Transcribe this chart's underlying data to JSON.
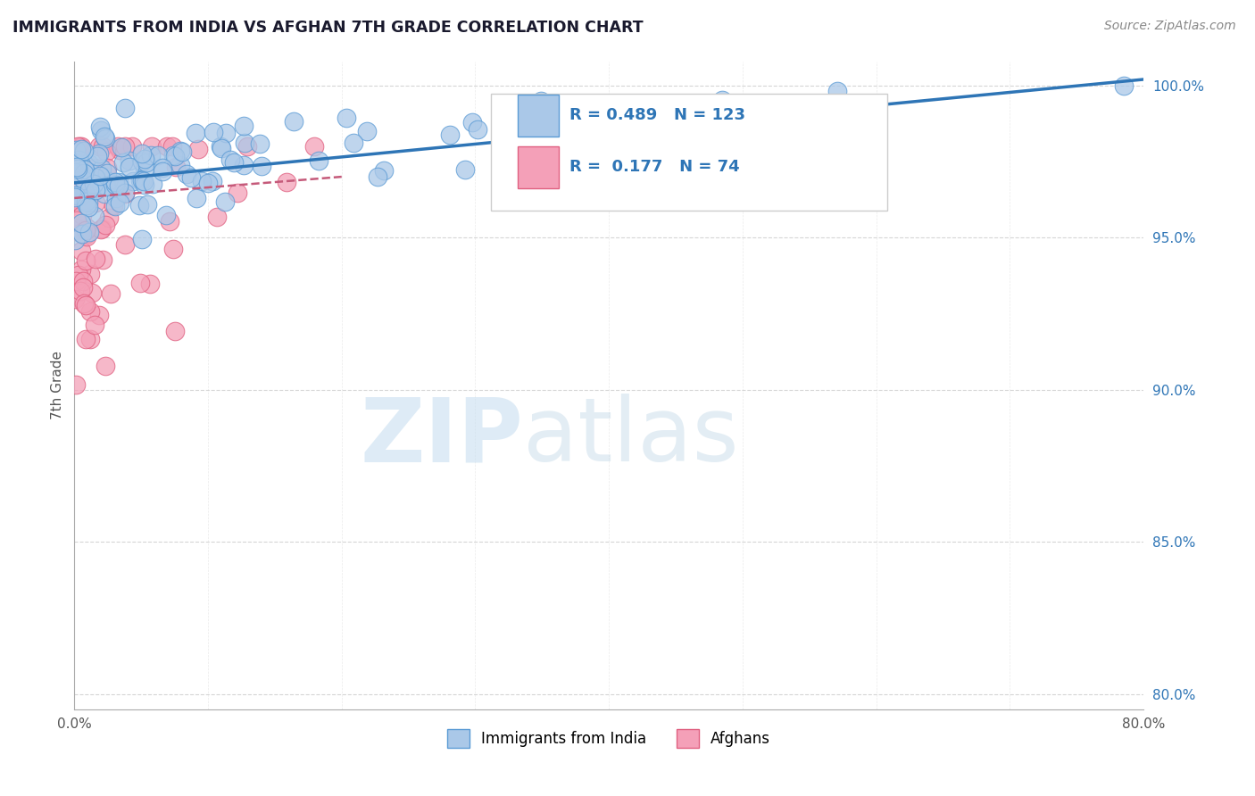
{
  "title": "IMMIGRANTS FROM INDIA VS AFGHAN 7TH GRADE CORRELATION CHART",
  "source": "Source: ZipAtlas.com",
  "ylabel": "7th Grade",
  "x_min": 0.0,
  "x_max": 0.8,
  "y_min": 0.795,
  "y_max": 1.008,
  "y_ticks": [
    0.8,
    0.85,
    0.9,
    0.95,
    1.0
  ],
  "y_tick_labels": [
    "80.0%",
    "85.0%",
    "90.0%",
    "95.0%",
    "100.0%"
  ],
  "india_color": "#aac8e8",
  "india_edge_color": "#5b9bd5",
  "afghan_color": "#f4a0b8",
  "afghan_edge_color": "#e06080",
  "india_R": 0.489,
  "india_N": 123,
  "afghan_R": 0.177,
  "afghan_N": 74,
  "legend_label_india": "Immigrants from India",
  "legend_label_afghan": "Afghans",
  "watermark_zip": "ZIP",
  "watermark_atlas": "atlas",
  "india_trend_color": "#2e75b6",
  "afghan_trend_color": "#c55a7a",
  "grid_color": "#cccccc",
  "background_color": "#ffffff",
  "title_color": "#1a1a2e"
}
